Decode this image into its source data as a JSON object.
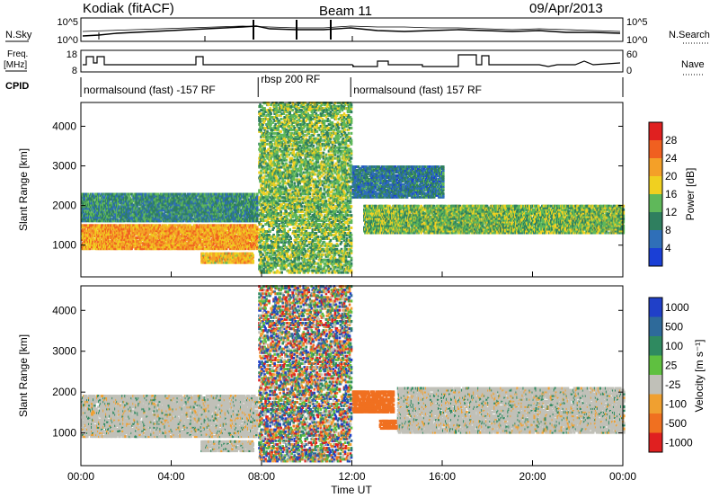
{
  "header": {
    "station": "Kodiak (fitACF)",
    "beam": "Beam 11",
    "date": "09/Apr/2013"
  },
  "side_labels": {
    "nsky": "N.Sky",
    "freq_top": "Freq.",
    "freq_unit": "[MHz]",
    "cpid": "CPID",
    "nsearch": "N.Search",
    "nave": "Nave"
  },
  "noise_panel": {
    "left_ticks": [
      "10^5",
      "10^0"
    ],
    "right_ticks": [
      "10^5",
      "10^0"
    ]
  },
  "freq_panel": {
    "left_ticks": [
      "18",
      "8"
    ],
    "right_ticks": [
      "60",
      "0"
    ]
  },
  "cpid_panel": {
    "segments": [
      {
        "label": "normalsound (fast) -157 RF",
        "start_h": 0.0,
        "end_h": 7.85
      },
      {
        "label": "rbsp 200 RF",
        "start_h": 7.85,
        "end_h": 11.95
      },
      {
        "label": "normalsound (fast) 157 RF",
        "start_h": 11.95,
        "end_h": 24.0
      }
    ]
  },
  "chart_data": [
    {
      "type": "heatmap",
      "parameter": "Power",
      "ylabel": "Slant Range [km]",
      "ylim": [
        200,
        4600
      ],
      "yticks": [
        "1000",
        "2000",
        "3000",
        "4000"
      ],
      "xlim_hours": [
        0,
        24
      ],
      "colorbar": {
        "label": "Power [dB]",
        "ticks": [
          "4",
          "8",
          "12",
          "16",
          "20",
          "24",
          "28"
        ],
        "range": [
          0,
          32
        ],
        "colors": [
          "#1a3fd6",
          "#2f6fb8",
          "#2f7f5f",
          "#5fb85a",
          "#f0d020",
          "#f4a028",
          "#f06020",
          "#e02020"
        ]
      },
      "features": [
        {
          "name": "E-region band",
          "start_h": 0,
          "end_h": 7.8,
          "range_km": [
            900,
            1500
          ],
          "value_db": 22
        },
        {
          "name": "F-region band",
          "start_h": 0,
          "end_h": 7.8,
          "range_km": [
            1600,
            2300
          ],
          "value_db": 10
        },
        {
          "name": "low echoes",
          "start_h": 5.3,
          "end_h": 7.6,
          "range_km": [
            550,
            800
          ],
          "value_db": 20
        },
        {
          "name": "rbsp speckle",
          "start_h": 7.85,
          "end_h": 11.95,
          "range_km": [
            300,
            4600
          ],
          "value_db": 14
        },
        {
          "name": "evening band",
          "start_h": 12.5,
          "end_h": 24,
          "range_km": [
            1300,
            2000
          ],
          "value_db": 14
        },
        {
          "name": "upper patches",
          "start_h": 12,
          "end_h": 16,
          "range_km": [
            2200,
            3000
          ],
          "value_db": 8
        }
      ]
    },
    {
      "type": "heatmap",
      "parameter": "Velocity",
      "ylabel": "Slant Range [km]",
      "ylim": [
        200,
        4600
      ],
      "yticks": [
        "1000",
        "2000",
        "3000",
        "4000"
      ],
      "xlim_hours": [
        0,
        24
      ],
      "xticks": [
        "00:00",
        "04:00",
        "08:00",
        "12:00",
        "16:00",
        "20:00",
        "00:00"
      ],
      "xlabel": "Time UT",
      "colorbar": {
        "label": "Velocity [m s⁻¹]",
        "ticks": [
          "1000",
          "500",
          "100",
          "25",
          "-25",
          "-100",
          "-500",
          "-1000"
        ],
        "colors": [
          "#2040c8",
          "#2e6a9a",
          "#2f8a60",
          "#5fc040",
          "#c0c0b8",
          "#f0a030",
          "#f07020",
          "#e02020"
        ]
      },
      "features": [
        {
          "name": "ground scatter band",
          "start_h": 0,
          "end_h": 7.8,
          "range_km": [
            900,
            1900
          ],
          "velocity": 0
        },
        {
          "name": "low echoes",
          "start_h": 5.3,
          "end_h": 7.6,
          "range_km": [
            550,
            800
          ],
          "velocity": 0
        },
        {
          "name": "rbsp speckle",
          "start_h": 7.85,
          "end_h": 11.95,
          "range_km": [
            300,
            4600
          ],
          "velocity": "mixed"
        },
        {
          "name": "orange patch",
          "start_h": 12.0,
          "end_h": 13.8,
          "range_km": [
            1500,
            2000
          ],
          "velocity": -300
        },
        {
          "name": "orange low patch",
          "start_h": 13.2,
          "end_h": 14.6,
          "range_km": [
            1100,
            1300
          ],
          "velocity": -300
        },
        {
          "name": "gray band",
          "start_h": 14.0,
          "end_h": 24,
          "range_km": [
            1000,
            2100
          ],
          "velocity": 0
        }
      ]
    }
  ]
}
